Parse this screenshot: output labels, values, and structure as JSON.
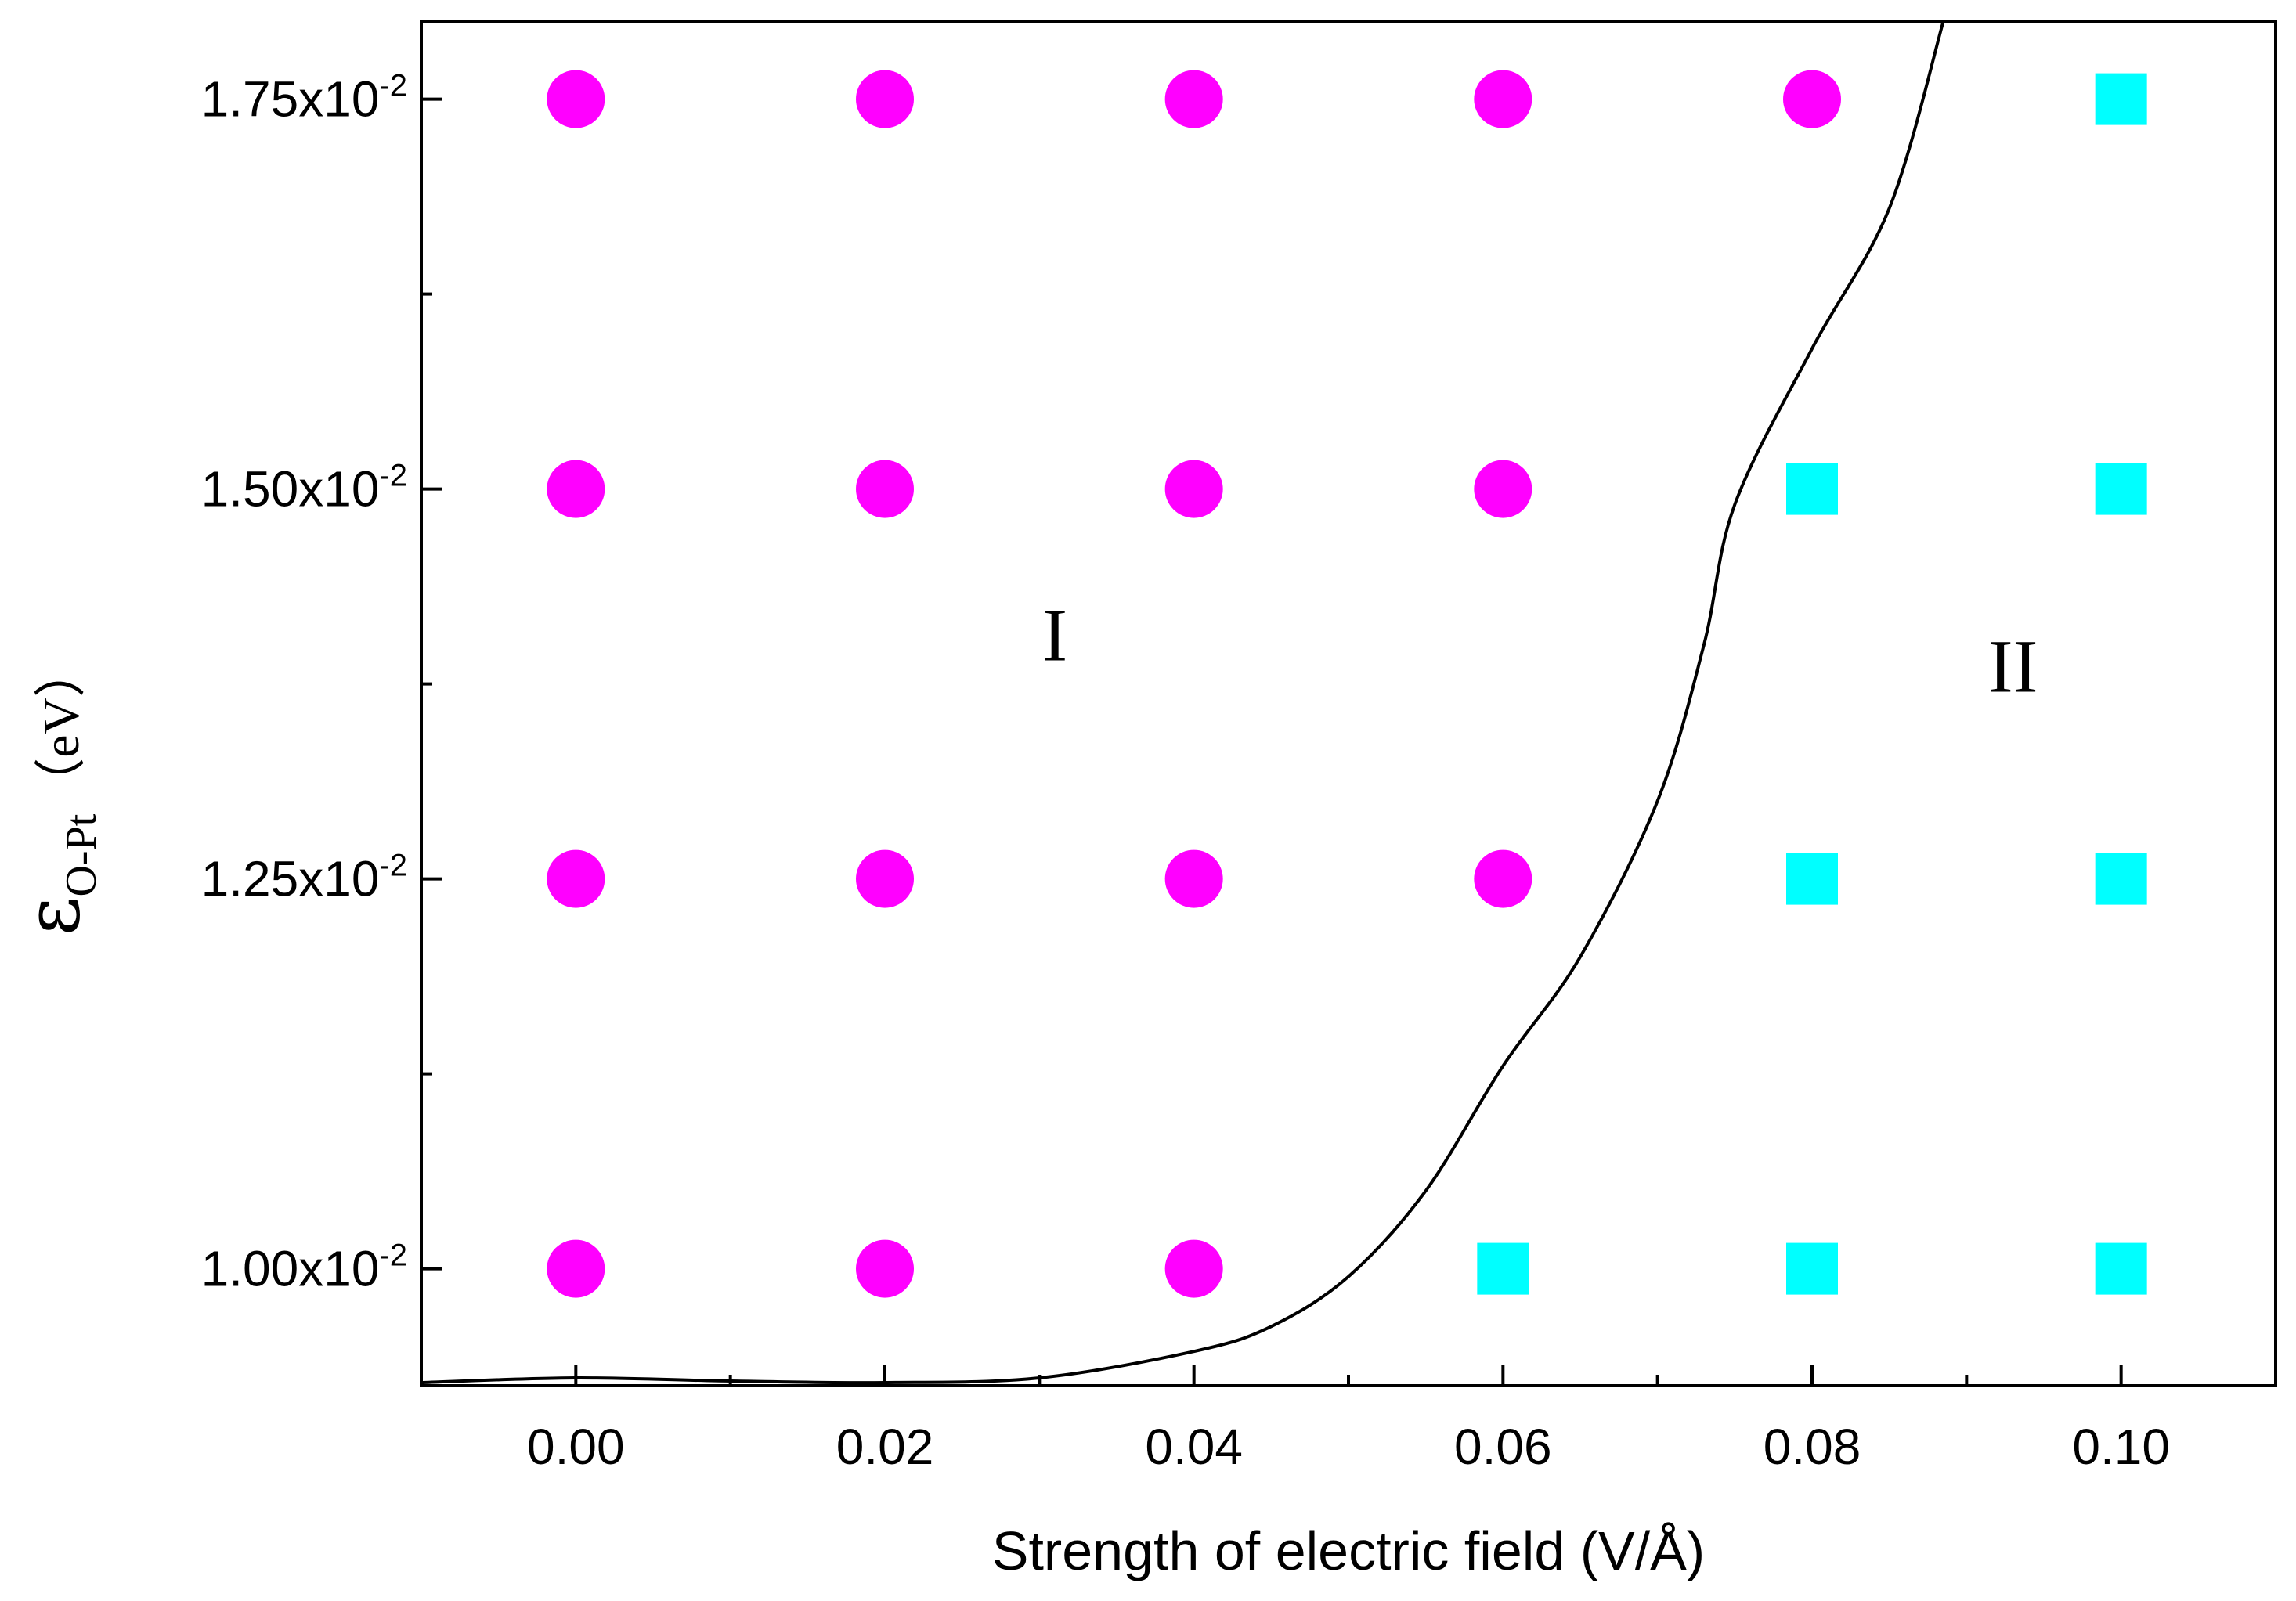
{
  "chart_data": {
    "type": "scatter",
    "title": "",
    "xlabel": "Strength of electric field (V/Å)",
    "ylabel": {
      "symbol": "ε",
      "subscript": "O-Pt",
      "unit": "（eV）"
    },
    "xlim": [
      -0.01,
      0.11
    ],
    "ylim": [
      0.00925,
      0.018
    ],
    "x_ticks": [
      0.0,
      0.02,
      0.04,
      0.06,
      0.08,
      0.1
    ],
    "x_tick_labels": [
      "0.00",
      "0.02",
      "0.04",
      "0.06",
      "0.08",
      "0.10"
    ],
    "y_ticks": [
      0.01,
      0.0125,
      0.015,
      0.0175
    ],
    "y_tick_labels": [
      {
        "mantissa": "1.00x10",
        "exponent": "-2"
      },
      {
        "mantissa": "1.25x10",
        "exponent": "-2"
      },
      {
        "mantissa": "1.50x10",
        "exponent": "-2"
      },
      {
        "mantissa": "1.75x10",
        "exponent": "-2"
      }
    ],
    "series": [
      {
        "name": "Region I",
        "marker": "circle",
        "color": "#ff00ff",
        "points": [
          [
            0.0,
            0.01
          ],
          [
            0.02,
            0.01
          ],
          [
            0.04,
            0.01
          ],
          [
            0.0,
            0.0125
          ],
          [
            0.02,
            0.0125
          ],
          [
            0.04,
            0.0125
          ],
          [
            0.06,
            0.0125
          ],
          [
            0.0,
            0.015
          ],
          [
            0.02,
            0.015
          ],
          [
            0.04,
            0.015
          ],
          [
            0.06,
            0.015
          ],
          [
            0.0,
            0.0175
          ],
          [
            0.02,
            0.0175
          ],
          [
            0.04,
            0.0175
          ],
          [
            0.06,
            0.0175
          ],
          [
            0.08,
            0.0175
          ]
        ]
      },
      {
        "name": "Region II",
        "marker": "square",
        "color": "#00ffff",
        "points": [
          [
            0.06,
            0.01
          ],
          [
            0.08,
            0.01
          ],
          [
            0.1,
            0.01
          ],
          [
            0.08,
            0.0125
          ],
          [
            0.1,
            0.0125
          ],
          [
            0.08,
            0.015
          ],
          [
            0.1,
            0.015
          ],
          [
            0.1,
            0.0175
          ]
        ]
      }
    ],
    "boundary_curve": {
      "color": "#000000",
      "points": [
        [
          -0.01,
          0.00927
        ],
        [
          0.0,
          0.0093
        ],
        [
          0.01,
          0.00928
        ],
        [
          0.02,
          0.00927
        ],
        [
          0.03,
          0.0093
        ],
        [
          0.04,
          0.00947
        ],
        [
          0.045,
          0.00963
        ],
        [
          0.05,
          0.00995
        ],
        [
          0.055,
          0.0105
        ],
        [
          0.06,
          0.0113
        ],
        [
          0.065,
          0.012
        ],
        [
          0.07,
          0.013
        ],
        [
          0.073,
          0.014
        ],
        [
          0.075,
          0.0149
        ],
        [
          0.08,
          0.0159
        ],
        [
          0.085,
          0.0168
        ],
        [
          0.0885,
          0.018
        ]
      ]
    },
    "annotations": [
      {
        "text": "I",
        "x": 0.031,
        "y": 0.0139
      },
      {
        "text": "II",
        "x": 0.093,
        "y": 0.0137
      }
    ]
  }
}
